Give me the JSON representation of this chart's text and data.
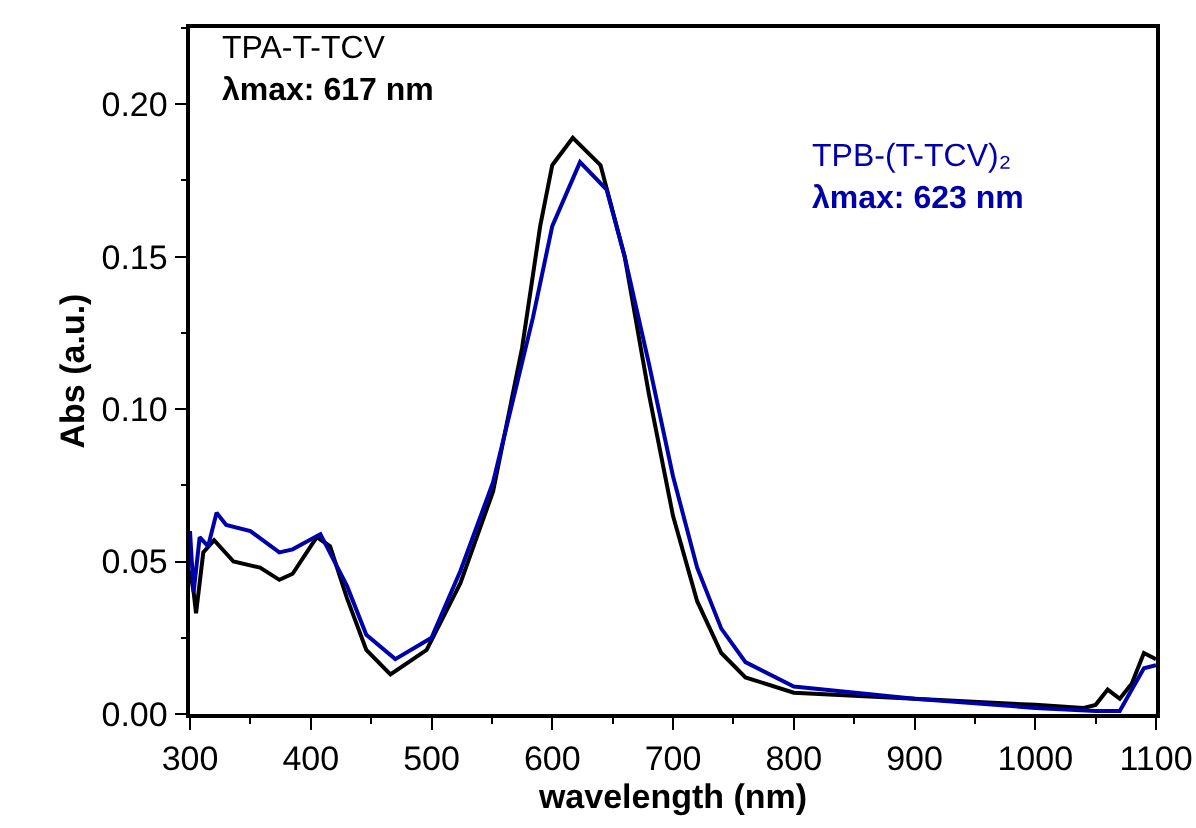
{
  "chart_data": {
    "type": "line",
    "xlabel": "wavelength (nm)",
    "ylabel": "Abs (a.u.)",
    "xlim": [
      300,
      1100
    ],
    "xticks": [
      300,
      400,
      500,
      600,
      700,
      800,
      900,
      1000,
      1100
    ],
    "ylim": [
      0,
      0.225
    ],
    "yticks": [
      {
        "value": 0,
        "label": "0.00"
      },
      0.05,
      {
        "value": 0.1,
        "label": "0.10"
      },
      0.15,
      {
        "value": 0.2,
        "label": "0.20"
      }
    ],
    "grid": false,
    "legend": false,
    "annotations": [
      "λmax: 617 nm",
      "λmax: 623 nm"
    ],
    "series": [
      {
        "name": "TPA-T-TCV",
        "color": "#000000",
        "x": [
          300,
          303,
          305,
          311,
          320,
          336,
          358,
          374,
          385,
          405,
          416,
          430,
          446,
          466,
          496,
          524,
          551,
          575,
          590,
          600,
          617,
          640,
          660,
          680,
          700,
          720,
          740,
          760,
          800,
          900,
          1000,
          1040,
          1050,
          1060,
          1070,
          1080,
          1090,
          1100
        ],
        "values": [
          0.047,
          0.04,
          0.033,
          0.053,
          0.057,
          0.05,
          0.048,
          0.044,
          0.046,
          0.058,
          0.055,
          0.038,
          0.021,
          0.013,
          0.021,
          0.043,
          0.073,
          0.12,
          0.16,
          0.18,
          0.189,
          0.18,
          0.15,
          0.105,
          0.065,
          0.037,
          0.02,
          0.012,
          0.007,
          0.005,
          0.003,
          0.002,
          0.003,
          0.008,
          0.005,
          0.01,
          0.02,
          0.018
        ]
      },
      {
        "name": "TPB-(T-TCV)₂",
        "color": "#0000aa",
        "x": [
          300,
          303,
          308,
          315,
          322,
          330,
          350,
          374,
          385,
          408,
          430,
          446,
          470,
          500,
          524,
          551,
          584,
          600,
          623,
          645,
          660,
          680,
          700,
          720,
          740,
          760,
          800,
          900,
          1000,
          1050,
          1070,
          1080,
          1090,
          1100
        ],
        "values": [
          0.06,
          0.04,
          0.058,
          0.055,
          0.066,
          0.062,
          0.06,
          0.053,
          0.054,
          0.059,
          0.042,
          0.026,
          0.018,
          0.025,
          0.047,
          0.076,
          0.13,
          0.16,
          0.181,
          0.172,
          0.15,
          0.115,
          0.078,
          0.048,
          0.028,
          0.017,
          0.009,
          0.005,
          0.002,
          0.001,
          0.001,
          0.008,
          0.015,
          0.016
        ]
      }
    ]
  }
}
